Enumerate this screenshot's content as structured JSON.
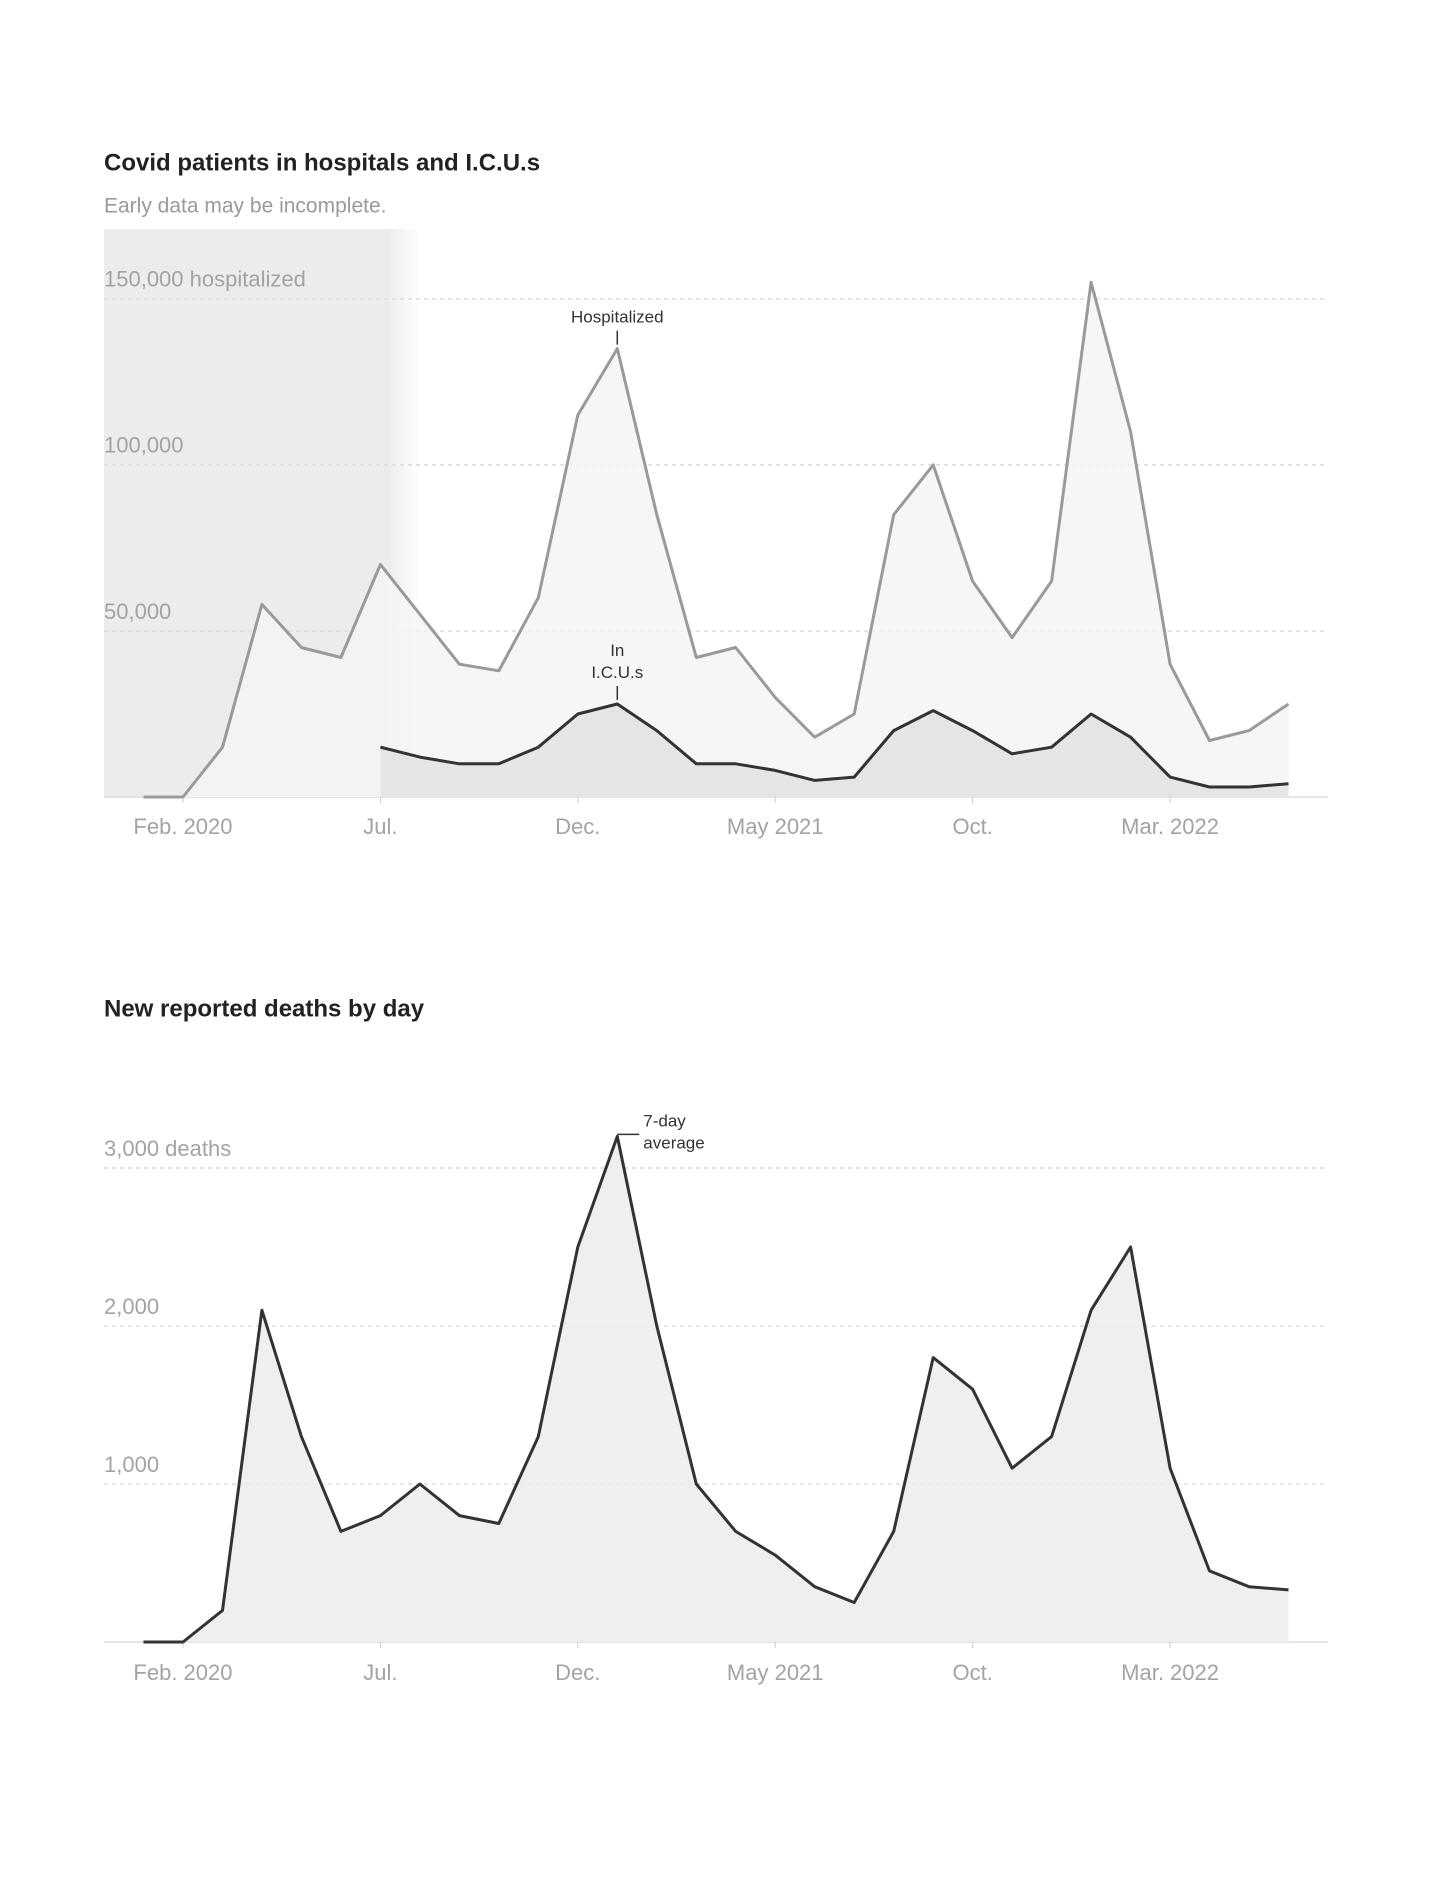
{
  "chart_data": [
    {
      "type": "area",
      "title": "Covid patients in hospitals and I.C.U.s",
      "subtitle": "Early data may be incomplete.",
      "shaded_until": "2020-08",
      "x": [
        "2020-01",
        "2020-02",
        "2020-03",
        "2020-04",
        "2020-05",
        "2020-06",
        "2020-07",
        "2020-08",
        "2020-09",
        "2020-10",
        "2020-11",
        "2020-12",
        "2021-01",
        "2021-02",
        "2021-03",
        "2021-04",
        "2021-05",
        "2021-06",
        "2021-07",
        "2021-08",
        "2021-09",
        "2021-10",
        "2021-11",
        "2021-12",
        "2022-01",
        "2022-02",
        "2022-03",
        "2022-04",
        "2022-05",
        "2022-06"
      ],
      "series": [
        {
          "name": "Hospitalized",
          "color": "#9a9a9a",
          "fill": "#f4f4f4",
          "label_x": "2021-01",
          "label_side": "top",
          "values": [
            0,
            0,
            15000,
            58000,
            45000,
            42000,
            70000,
            55000,
            40000,
            38000,
            60000,
            115000,
            135000,
            85000,
            42000,
            45000,
            30000,
            18000,
            25000,
            85000,
            100000,
            65000,
            48000,
            65000,
            155000,
            110000,
            40000,
            17000,
            20000,
            28000
          ]
        },
        {
          "name": "In I.C.U.s",
          "color": "#333333",
          "fill": "#e2e2e2",
          "label_x": "2021-01",
          "label_side": "top",
          "values": [
            null,
            null,
            null,
            null,
            null,
            null,
            15000,
            12000,
            10000,
            10000,
            15000,
            25000,
            28000,
            20000,
            10000,
            10000,
            8000,
            5000,
            6000,
            20000,
            26000,
            20000,
            13000,
            15000,
            25000,
            18000,
            6000,
            3000,
            3000,
            4000
          ]
        }
      ],
      "xlim": [
        "2019-12",
        "2022-07"
      ],
      "xticks": [
        {
          "value": "2020-02",
          "label": "Feb. 2020"
        },
        {
          "value": "2020-07",
          "label": "Jul."
        },
        {
          "value": "2020-12",
          "label": "Dec."
        },
        {
          "value": "2021-05",
          "label": "May 2021"
        },
        {
          "value": "2021-10",
          "label": "Oct."
        },
        {
          "value": "2022-03",
          "label": "Mar. 2022"
        }
      ],
      "ylim": [
        0,
        165000
      ],
      "yticks": [
        {
          "value": 50000,
          "label": "50,000"
        },
        {
          "value": 100000,
          "label": "100,000"
        },
        {
          "value": 150000,
          "label": "150,000 hospitalized"
        }
      ],
      "grid": true
    },
    {
      "type": "area",
      "title": "New reported deaths by day",
      "x": [
        "2020-01",
        "2020-02",
        "2020-03",
        "2020-04",
        "2020-05",
        "2020-06",
        "2020-07",
        "2020-08",
        "2020-09",
        "2020-10",
        "2020-11",
        "2020-12",
        "2021-01",
        "2021-02",
        "2021-03",
        "2021-04",
        "2021-05",
        "2021-06",
        "2021-07",
        "2021-08",
        "2021-09",
        "2021-10",
        "2021-11",
        "2021-12",
        "2022-01",
        "2022-02",
        "2022-03",
        "2022-04",
        "2022-05",
        "2022-06"
      ],
      "series": [
        {
          "name": "7-day average",
          "color": "#333333",
          "fill": "#ececec",
          "label_x": "2021-01",
          "label_side": "right",
          "values": [
            0,
            0,
            200,
            2100,
            1300,
            700,
            800,
            1000,
            800,
            750,
            1300,
            2500,
            3200,
            2000,
            1000,
            700,
            550,
            350,
            250,
            700,
            1800,
            1600,
            1100,
            1300,
            2100,
            2500,
            1100,
            450,
            350,
            330
          ]
        }
      ],
      "xlim": [
        "2019-12",
        "2022-07"
      ],
      "xticks": [
        {
          "value": "2020-02",
          "label": "Feb. 2020"
        },
        {
          "value": "2020-07",
          "label": "Jul."
        },
        {
          "value": "2020-12",
          "label": "Dec."
        },
        {
          "value": "2021-05",
          "label": "May 2021"
        },
        {
          "value": "2021-10",
          "label": "Oct."
        },
        {
          "value": "2022-03",
          "label": "Mar. 2022"
        }
      ],
      "ylim": [
        0,
        3500
      ],
      "yticks": [
        {
          "value": 1000,
          "label": "1,000"
        },
        {
          "value": 2000,
          "label": "2,000"
        },
        {
          "value": 3000,
          "label": "3,000 deaths"
        }
      ],
      "grid": true
    }
  ]
}
